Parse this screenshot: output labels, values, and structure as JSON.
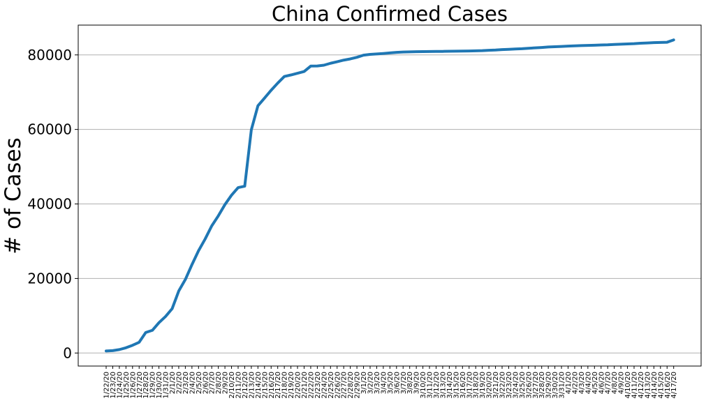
{
  "chart_data": {
    "type": "line",
    "title": "China Confirmed Cases",
    "ylabel": "# of Cases",
    "xlabel": "",
    "ylim": [
      -3500,
      88000
    ],
    "yticks": [
      0,
      20000,
      40000,
      60000,
      80000
    ],
    "grid": "horizontal",
    "legend": "none",
    "line_color": "#1f77b4",
    "x": [
      "1/22/20",
      "1/23/20",
      "1/24/20",
      "1/25/20",
      "1/26/20",
      "1/27/20",
      "1/28/20",
      "1/29/20",
      "1/30/20",
      "1/31/20",
      "2/1/20",
      "2/2/20",
      "2/3/20",
      "2/4/20",
      "2/5/20",
      "2/6/20",
      "2/7/20",
      "2/8/20",
      "2/9/20",
      "2/10/20",
      "2/11/20",
      "2/12/20",
      "2/13/20",
      "2/14/20",
      "2/15/20",
      "2/16/20",
      "2/17/20",
      "2/18/20",
      "2/19/20",
      "2/20/20",
      "2/21/20",
      "2/22/20",
      "2/23/20",
      "2/24/20",
      "2/25/20",
      "2/26/20",
      "2/27/20",
      "2/28/20",
      "2/29/20",
      "3/1/20",
      "3/2/20",
      "3/3/20",
      "3/4/20",
      "3/5/20",
      "3/6/20",
      "3/7/20",
      "3/8/20",
      "3/9/20",
      "3/10/20",
      "3/11/20",
      "3/12/20",
      "3/13/20",
      "3/14/20",
      "3/15/20",
      "3/16/20",
      "3/17/20",
      "3/18/20",
      "3/19/20",
      "3/20/20",
      "3/21/20",
      "3/22/20",
      "3/23/20",
      "3/24/20",
      "3/25/20",
      "3/26/20",
      "3/27/20",
      "3/28/20",
      "3/29/20",
      "3/30/20",
      "3/31/20",
      "4/1/20",
      "4/2/20",
      "4/3/20",
      "4/4/20",
      "4/5/20",
      "4/6/20",
      "4/7/20",
      "4/8/20",
      "4/9/20",
      "4/10/20",
      "4/11/20",
      "4/12/20",
      "4/13/20",
      "4/14/20",
      "4/15/20",
      "4/16/20",
      "4/17/20"
    ],
    "series": [
      {
        "values": [
          548,
          643,
          920,
          1406,
          2075,
          2877,
          5509,
          6087,
          8141,
          9802,
          11891,
          16630,
          19716,
          23707,
          27440,
          30587,
          34110,
          36814,
          39829,
          42354,
          44386,
          44759,
          59895,
          66358,
          68413,
          70513,
          72434,
          74211,
          74619,
          75077,
          75550,
          77001,
          77022,
          77241,
          77754,
          78166,
          78600,
          78928,
          79356,
          79932,
          80136,
          80261,
          80386,
          80537,
          80690,
          80770,
          80823,
          80860,
          80887,
          80921,
          80932,
          80945,
          80977,
          81003,
          81033,
          81058,
          81102,
          81156,
          81250,
          81305,
          81435,
          81498,
          81591,
          81661,
          81782,
          81897,
          81999,
          82122,
          82198,
          82279,
          82361,
          82432,
          82511,
          82543,
          82602,
          82665,
          82718,
          82809,
          82883,
          82941,
          83014,
          83134,
          83213,
          83306,
          83356,
          83403,
          84029
        ]
      }
    ]
  }
}
